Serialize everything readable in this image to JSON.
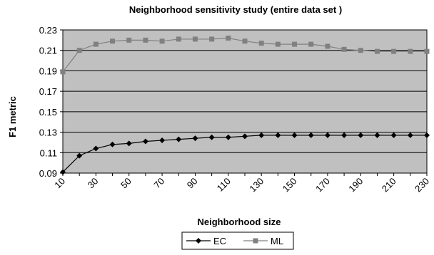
{
  "chart_data": {
    "type": "line",
    "title": "Neighborhood sensitivity study (entire data set )",
    "xlabel": "Neighborhood size",
    "ylabel": "F1 metric",
    "x": [
      10,
      20,
      30,
      40,
      50,
      60,
      70,
      80,
      90,
      100,
      110,
      120,
      130,
      140,
      150,
      160,
      170,
      180,
      190,
      200,
      210,
      220,
      230
    ],
    "x_tick_labels": [
      "10",
      "30",
      "50",
      "70",
      "90",
      "110",
      "130",
      "150",
      "170",
      "190",
      "210",
      "230"
    ],
    "xlim": [
      10,
      230
    ],
    "ylim": [
      0.09,
      0.23
    ],
    "y_tick_labels": [
      "0.09",
      "0.11",
      "0.13",
      "0.15",
      "0.17",
      "0.19",
      "0.21",
      "0.23"
    ],
    "grid": "horizontal",
    "legend_position": "bottom",
    "series": [
      {
        "name": "EC",
        "color": "#000000",
        "marker": "diamond",
        "values": [
          0.091,
          0.107,
          0.114,
          0.118,
          0.119,
          0.121,
          0.122,
          0.123,
          0.124,
          0.125,
          0.125,
          0.126,
          0.127,
          0.127,
          0.127,
          0.127,
          0.127,
          0.127,
          0.127,
          0.127,
          0.127,
          0.127,
          0.127
        ]
      },
      {
        "name": "ML",
        "color": "#808080",
        "marker": "square",
        "values": [
          0.189,
          0.21,
          0.216,
          0.219,
          0.22,
          0.22,
          0.219,
          0.221,
          0.221,
          0.221,
          0.222,
          0.219,
          0.217,
          0.216,
          0.216,
          0.216,
          0.214,
          0.211,
          0.21,
          0.209,
          0.209,
          0.209,
          0.209
        ]
      }
    ],
    "plot_background": "#c0c0c0"
  }
}
